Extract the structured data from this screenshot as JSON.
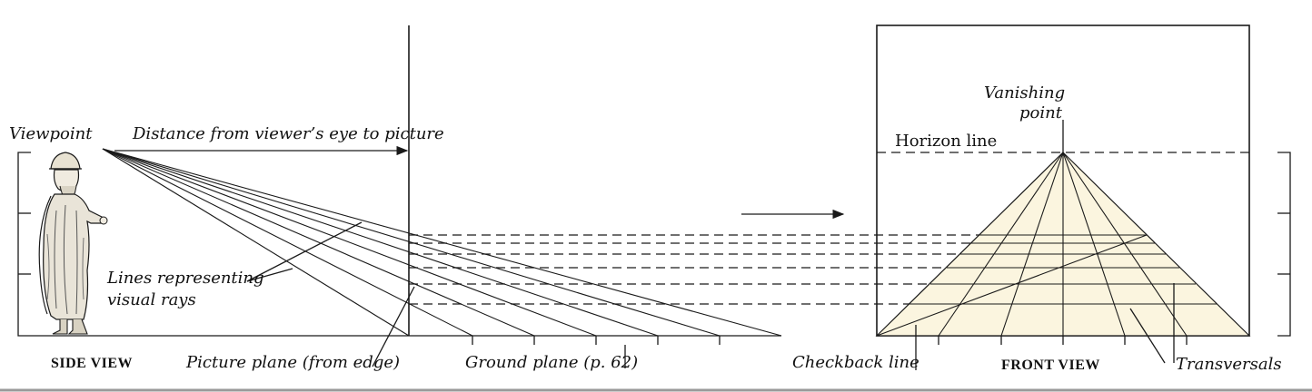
{
  "labels": {
    "viewpoint": "Viewpoint",
    "distance": "Distance from viewer’s eye to picture",
    "lines_rays_1": "Lines representing",
    "lines_rays_2": "visual rays",
    "side_view": "SIDE VIEW",
    "picture_plane": "Picture plane (from edge)",
    "ground_plane": "Ground plane (p. 62)",
    "checkback_line": "Checkback line",
    "front_view": "FRONT VIEW",
    "transversals": "Transversals",
    "vanishing_1": "Vanishing",
    "vanishing_2": "point",
    "horizon_line": "Horizon line"
  },
  "colors": {
    "ink": "#1a1a1a",
    "floor_fill": "#fbf5df",
    "border_gray": "#9a9a9a"
  }
}
